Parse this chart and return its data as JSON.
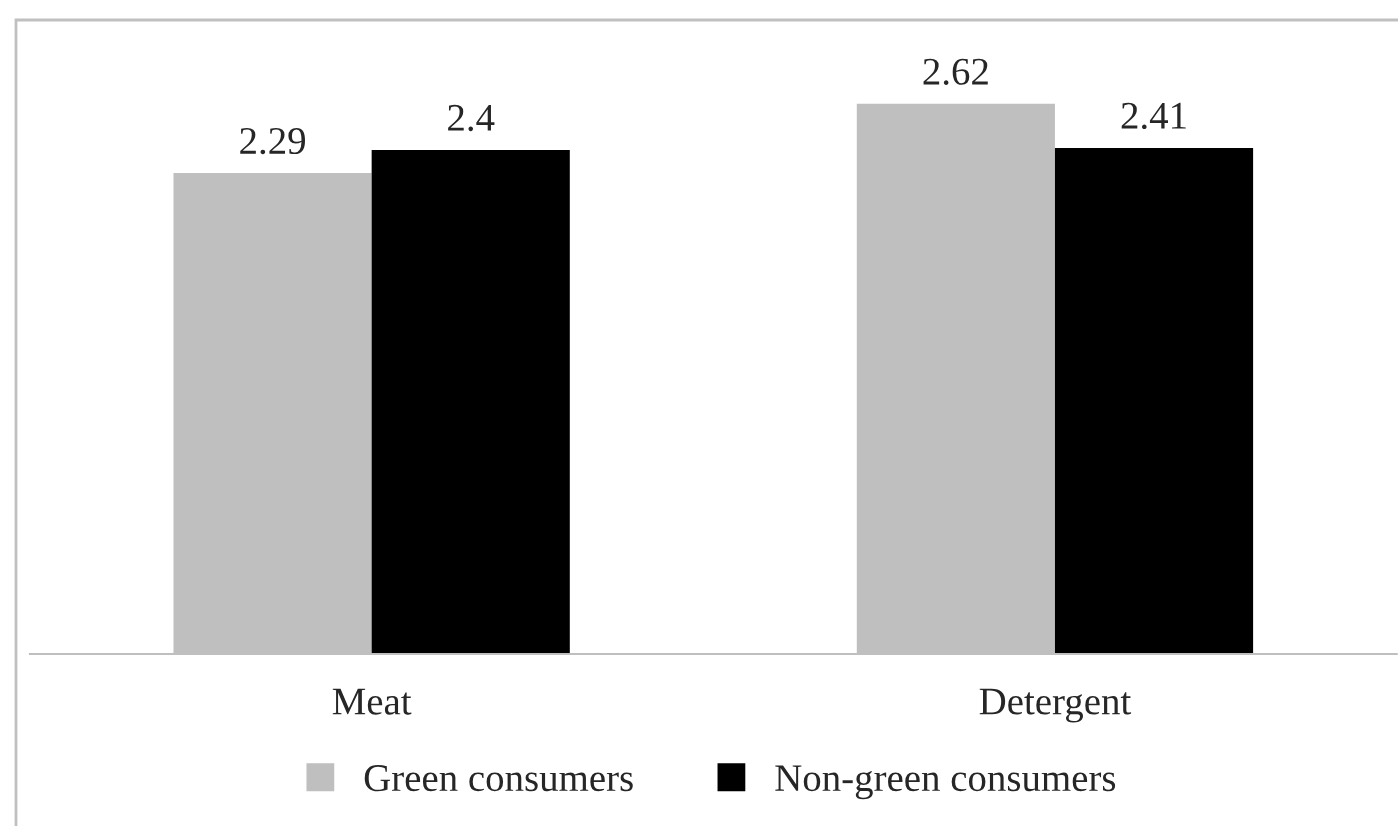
{
  "chart_data": {
    "type": "bar",
    "categories": [
      "Meat",
      "Detergent"
    ],
    "series": [
      {
        "name": "Green consumers",
        "color": "#bfbfbf",
        "values": [
          2.29,
          2.62
        ]
      },
      {
        "name": "Non-green consumers",
        "color": "#000000",
        "values": [
          2.4,
          2.41
        ]
      }
    ],
    "ylim": [
      0,
      3
    ],
    "tick_labels": "x",
    "data_labels": true,
    "grid": false,
    "legend": "bottom"
  }
}
